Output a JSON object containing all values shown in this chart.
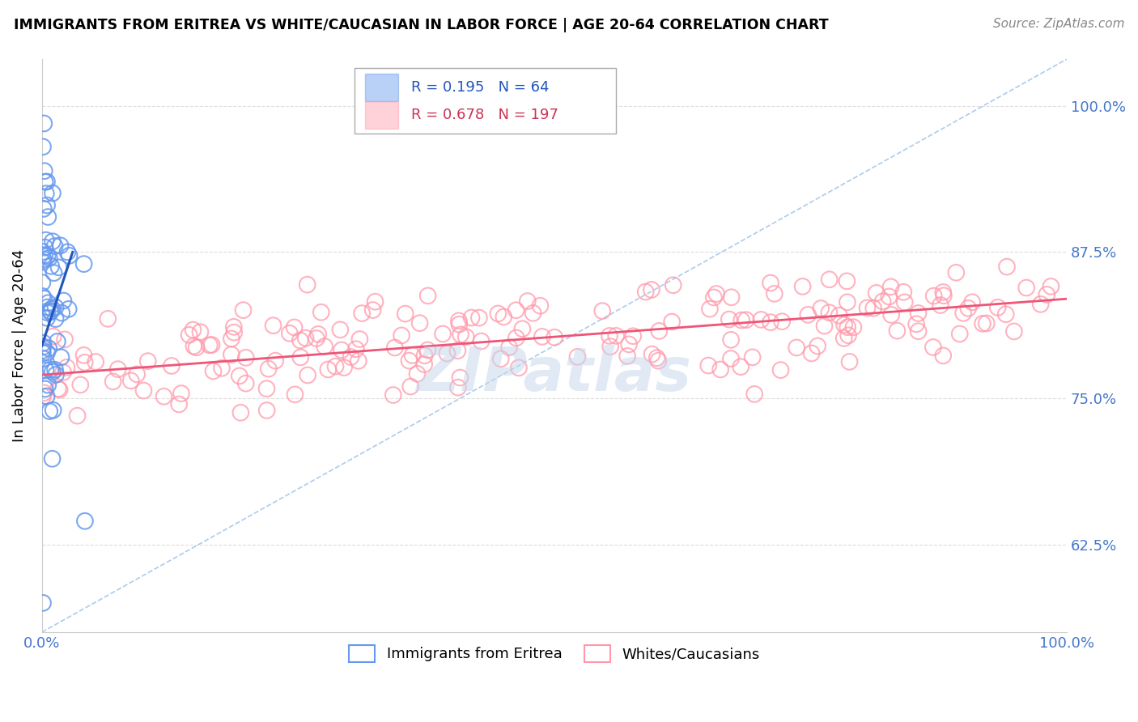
{
  "title": "IMMIGRANTS FROM ERITREA VS WHITE/CAUCASIAN IN LABOR FORCE | AGE 20-64 CORRELATION CHART",
  "source": "Source: ZipAtlas.com",
  "ylabel": "In Labor Force | Age 20-64",
  "xlim": [
    0.0,
    1.0
  ],
  "ylim": [
    0.55,
    1.04
  ],
  "yticks": [
    0.625,
    0.75,
    0.875,
    1.0
  ],
  "ytick_labels": [
    "62.5%",
    "75.0%",
    "87.5%",
    "100.0%"
  ],
  "xticks": [
    0.0,
    1.0
  ],
  "xtick_labels": [
    "0.0%",
    "100.0%"
  ],
  "legend_R1": "0.195",
  "legend_N1": "64",
  "legend_R2": "0.678",
  "legend_N2": "197",
  "blue_color": "#6699ee",
  "pink_color": "#ff99aa",
  "blue_line_color": "#2255bb",
  "pink_line_color": "#ee5577",
  "diagonal_color": "#aaccee",
  "watermark": "ZIPatlas",
  "legend_label1": "Immigrants from Eritrea",
  "legend_label2": "Whites/Caucasians"
}
